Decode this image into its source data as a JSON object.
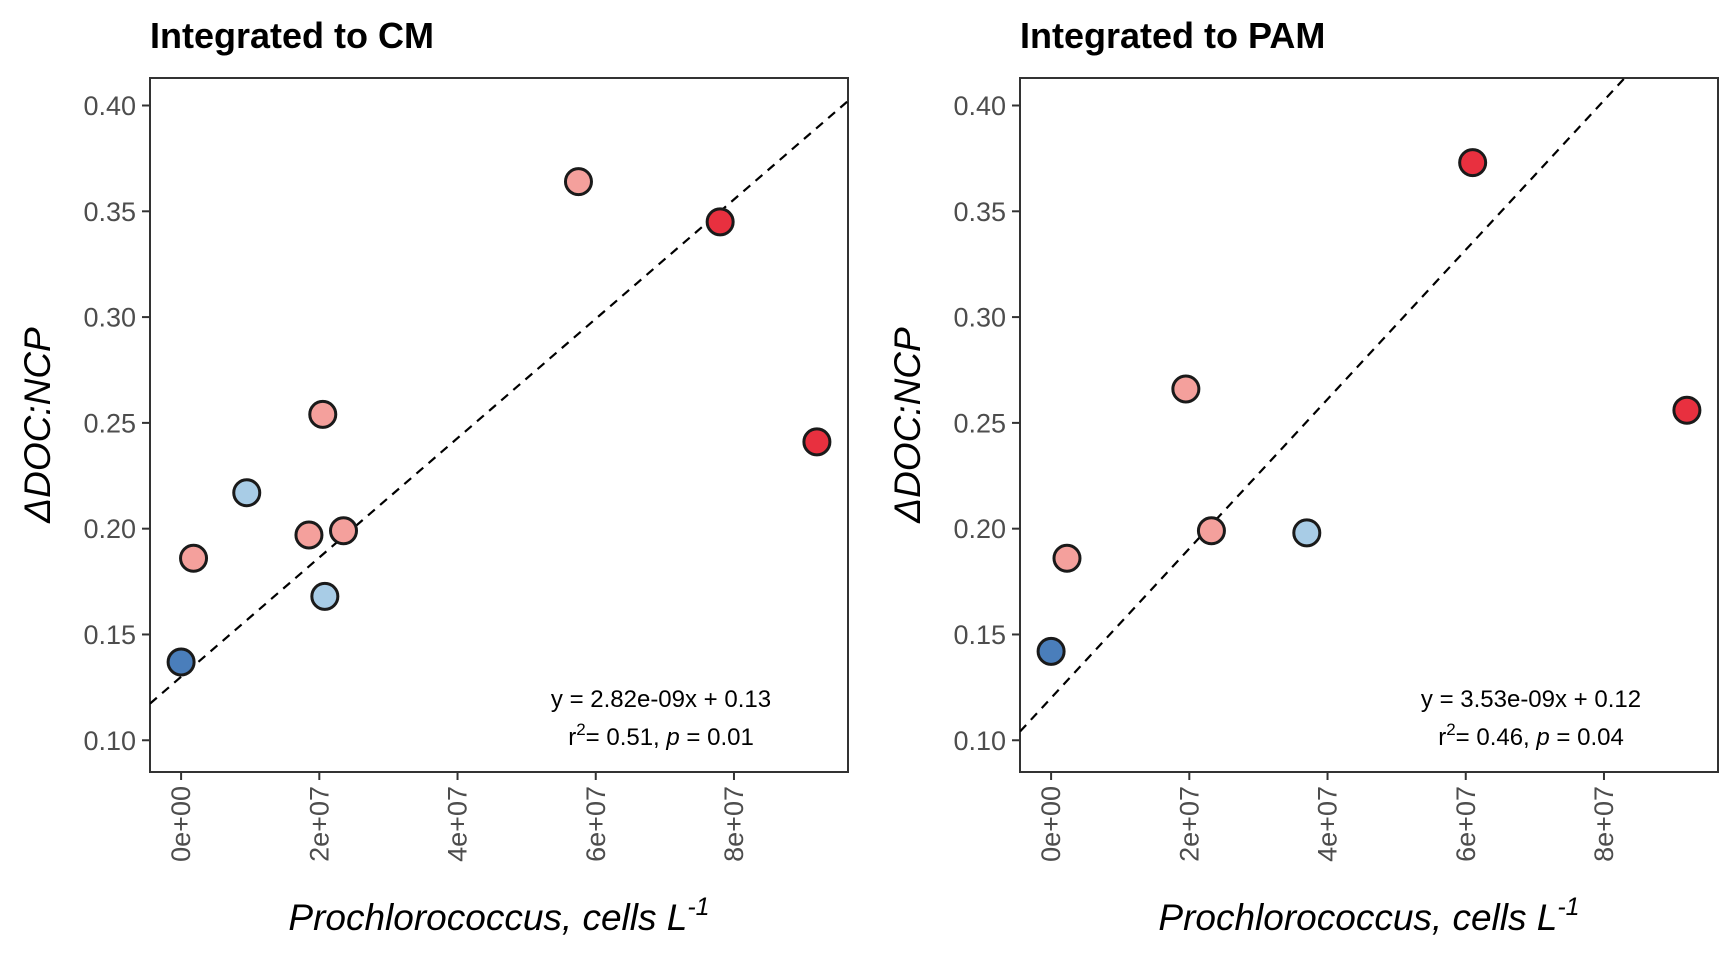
{
  "chart_data": [
    {
      "type": "scatter",
      "title": "Integrated to CM",
      "xlabel": "Prochlorococcus",
      "xlabel_suffix": ", cells L",
      "xlabel_superscript": "-1",
      "ylabel": "ΔDOC:NCP",
      "xlim": [
        -4500000,
        96500000
      ],
      "ylim": [
        0.085,
        0.413
      ],
      "xticks": [
        0,
        20000000,
        40000000,
        60000000,
        80000000
      ],
      "xtick_labels": [
        "0e+00",
        "2e+07",
        "4e+07",
        "6e+07",
        "8e+07"
      ],
      "yticks": [
        0.1,
        0.15,
        0.2,
        0.25,
        0.3,
        0.35,
        0.4
      ],
      "ytick_labels": [
        "0.10",
        "0.15",
        "0.20",
        "0.25",
        "0.30",
        "0.35",
        "0.40"
      ],
      "grid": false,
      "legend": "none",
      "points": [
        {
          "x": 0,
          "y": 0.137,
          "color": "#4a7ebb"
        },
        {
          "x": 1800000,
          "y": 0.186,
          "color": "#f4a09c"
        },
        {
          "x": 9500000,
          "y": 0.217,
          "color": "#a8cce6"
        },
        {
          "x": 18500000,
          "y": 0.197,
          "color": "#f4a09c"
        },
        {
          "x": 20500000,
          "y": 0.254,
          "color": "#f4a09c"
        },
        {
          "x": 20800000,
          "y": 0.168,
          "color": "#a8cce6"
        },
        {
          "x": 23500000,
          "y": 0.199,
          "color": "#f4a09c"
        },
        {
          "x": 57500000,
          "y": 0.364,
          "color": "#f4a09c"
        },
        {
          "x": 78000000,
          "y": 0.345,
          "color": "#e8303f"
        },
        {
          "x": 92000000,
          "y": 0.241,
          "color": "#e8303f"
        }
      ],
      "fit": {
        "slope": 2.82e-09,
        "intercept": 0.13,
        "style": "dashed"
      },
      "annotation_line1": "y = 2.82e-09x + 0.13",
      "annotation_r2_prefix": "r",
      "annotation_r2_exp": "2",
      "annotation_r2_value": "= 0.51, ",
      "annotation_p_label": "p",
      "annotation_p_value": " = 0.01"
    },
    {
      "type": "scatter",
      "title": "Integrated to PAM",
      "xlabel": "Prochlorococcus",
      "xlabel_suffix": ", cells L",
      "xlabel_superscript": "-1",
      "ylabel": "ΔDOC:NCP",
      "xlim": [
        -4500000,
        96500000
      ],
      "ylim": [
        0.085,
        0.413
      ],
      "xticks": [
        0,
        20000000,
        40000000,
        60000000,
        80000000
      ],
      "xtick_labels": [
        "0e+00",
        "2e+07",
        "4e+07",
        "6e+07",
        "8e+07"
      ],
      "yticks": [
        0.1,
        0.15,
        0.2,
        0.25,
        0.3,
        0.35,
        0.4
      ],
      "ytick_labels": [
        "0.10",
        "0.15",
        "0.20",
        "0.25",
        "0.30",
        "0.35",
        "0.40"
      ],
      "grid": false,
      "legend": "none",
      "points": [
        {
          "x": 0,
          "y": 0.142,
          "color": "#4a7ebb"
        },
        {
          "x": 2300000,
          "y": 0.186,
          "color": "#f4a09c"
        },
        {
          "x": 19500000,
          "y": 0.266,
          "color": "#f4a09c"
        },
        {
          "x": 23200000,
          "y": 0.199,
          "color": "#f4a09c"
        },
        {
          "x": 37000000,
          "y": 0.198,
          "color": "#a8cce6"
        },
        {
          "x": 61000000,
          "y": 0.373,
          "color": "#e8303f"
        },
        {
          "x": 92000000,
          "y": 0.256,
          "color": "#e8303f"
        }
      ],
      "fit": {
        "slope": 3.53e-09,
        "intercept": 0.12,
        "style": "dashed"
      },
      "annotation_line1": "y = 3.53e-09x + 0.12",
      "annotation_r2_prefix": "r",
      "annotation_r2_exp": "2",
      "annotation_r2_value": "= 0.46, ",
      "annotation_p_label": "p",
      "annotation_p_value": " = 0.04"
    }
  ]
}
